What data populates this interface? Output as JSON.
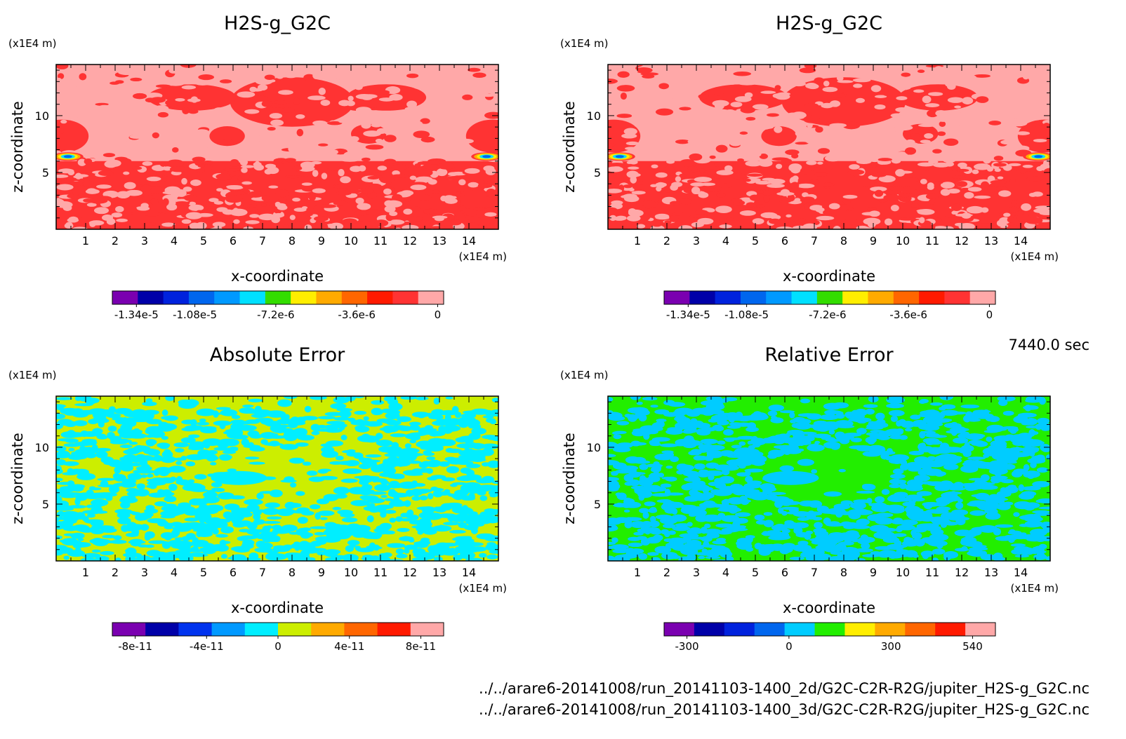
{
  "time_label": "7440.0 sec",
  "footer": {
    "file_2d": "../../arare6-20141008/run_20141103-1400_2d/G2C-C2R-R2G/jupiter_H2S-g_G2C.nc",
    "file_3d": "../../arare6-20141008/run_20141103-1400_3d/G2C-C2R-R2G/jupiter_H2S-g_G2C.nc"
  },
  "chart_data": [
    {
      "type": "heatmap",
      "title": "H2S-g_G2C",
      "xlabel": "x-coordinate",
      "ylabel": "z-coordinate",
      "x_unit": "(x1E4 m)",
      "y_unit": "(x1E4 m)",
      "xlim": [
        0,
        15
      ],
      "ylim": [
        0,
        14.5
      ],
      "xticks": [
        1,
        2,
        3,
        4,
        5,
        6,
        7,
        8,
        9,
        10,
        11,
        12,
        13,
        14
      ],
      "yticks": [
        5,
        10
      ],
      "pattern": "field",
      "field_colors": [
        "#ff3333",
        "#ffa8a8"
      ],
      "colorbar": {
        "colors": [
          "#7a00b0",
          "#0000a8",
          "#0022dd",
          "#0066ee",
          "#0099ff",
          "#00e0ff",
          "#33dd00",
          "#ffee00",
          "#ffaa00",
          "#ff6600",
          "#ff1a00",
          "#ff3333",
          "#ffa8a8"
        ],
        "tick_values": [
          -1.34e-05,
          -1.08e-05,
          -7.2e-06,
          -3.6e-06,
          0
        ],
        "tick_labels": [
          "-1.34e-5",
          "-1.08e-5",
          "-7.2e-6",
          "-3.6e-6",
          "0"
        ]
      }
    },
    {
      "type": "heatmap",
      "title": "H2S-g_G2C",
      "xlabel": "x-coordinate",
      "ylabel": "z-coordinate",
      "x_unit": "(x1E4 m)",
      "y_unit": "(x1E4 m)",
      "xlim": [
        0,
        15
      ],
      "ylim": [
        0,
        14.5
      ],
      "xticks": [
        1,
        2,
        3,
        4,
        5,
        6,
        7,
        8,
        9,
        10,
        11,
        12,
        13,
        14
      ],
      "yticks": [
        5,
        10
      ],
      "pattern": "field",
      "field_colors": [
        "#ff3333",
        "#ffa8a8"
      ],
      "colorbar": {
        "colors": [
          "#7a00b0",
          "#0000a8",
          "#0022dd",
          "#0066ee",
          "#0099ff",
          "#00e0ff",
          "#33dd00",
          "#ffee00",
          "#ffaa00",
          "#ff6600",
          "#ff1a00",
          "#ff3333",
          "#ffa8a8"
        ],
        "tick_values": [
          -1.34e-05,
          -1.08e-05,
          -7.2e-06,
          -3.6e-06,
          0
        ],
        "tick_labels": [
          "-1.34e-5",
          "-1.08e-5",
          "-7.2e-6",
          "-3.6e-6",
          "0"
        ]
      }
    },
    {
      "type": "heatmap",
      "title": "Absolute Error",
      "xlabel": "x-coordinate",
      "ylabel": "z-coordinate",
      "x_unit": "(x1E4 m)",
      "y_unit": "(x1E4 m)",
      "xlim": [
        0,
        15
      ],
      "ylim": [
        0,
        14.5
      ],
      "xticks": [
        1,
        2,
        3,
        4,
        5,
        6,
        7,
        8,
        9,
        10,
        11,
        12,
        13,
        14
      ],
      "yticks": [
        5,
        10
      ],
      "pattern": "error",
      "field_colors": [
        "#ccee00",
        "#00eeff"
      ],
      "colorbar": {
        "colors": [
          "#7a00b0",
          "#0000a8",
          "#0033ee",
          "#0099ff",
          "#00eeff",
          "#ccee00",
          "#ffaa00",
          "#ff6600",
          "#ff1a00",
          "#ffa8a8"
        ],
        "tick_values": [
          -8e-11,
          -4e-11,
          0,
          4e-11,
          8e-11
        ],
        "tick_labels": [
          "-8e-11",
          "-4e-11",
          "0",
          "4e-11",
          "8e-11"
        ]
      }
    },
    {
      "type": "heatmap",
      "title": "Relative Error",
      "xlabel": "x-coordinate",
      "ylabel": "z-coordinate",
      "x_unit": "(x1E4 m)",
      "y_unit": "(x1E4 m)",
      "xlim": [
        0,
        15
      ],
      "ylim": [
        0,
        14.5
      ],
      "xticks": [
        1,
        2,
        3,
        4,
        5,
        6,
        7,
        8,
        9,
        10,
        11,
        12,
        13,
        14
      ],
      "yticks": [
        5,
        10
      ],
      "pattern": "error",
      "field_colors": [
        "#22ee00",
        "#00ccff"
      ],
      "colorbar": {
        "colors": [
          "#7a00b0",
          "#0000a8",
          "#0022dd",
          "#0066ee",
          "#00ccff",
          "#22ee00",
          "#ffee00",
          "#ffaa00",
          "#ff6600",
          "#ff1a00",
          "#ffa8a8"
        ],
        "tick_values": [
          -300,
          0,
          300,
          540
        ],
        "tick_labels": [
          "-300",
          "0",
          "300",
          "540"
        ]
      }
    }
  ]
}
